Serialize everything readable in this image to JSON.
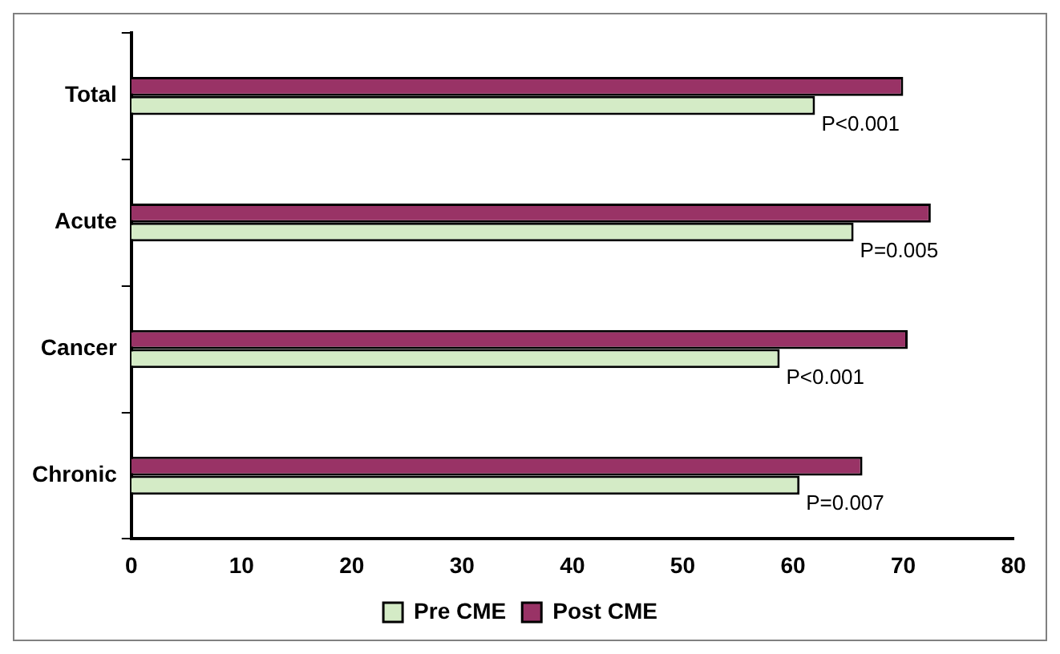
{
  "chart_data": {
    "type": "bar",
    "orientation": "horizontal",
    "categories": [
      "Total",
      "Acute",
      "Cancer",
      "Chronic"
    ],
    "series": [
      {
        "name": "Pre CME",
        "color": "#d4ebc6",
        "values": [
          62,
          65.5,
          58.8,
          60.6
        ]
      },
      {
        "name": "Post CME",
        "color": "#993366",
        "values": [
          70,
          72.5,
          70.4,
          66.3
        ]
      }
    ],
    "xlim": [
      0,
      80
    ],
    "xticks": [
      0,
      10,
      20,
      30,
      40,
      50,
      60,
      70,
      80
    ],
    "grid": false,
    "legend": "bottom",
    "annotations": [
      "P<0.001",
      "P=0.005",
      "P<0.001",
      "P=0.007"
    ]
  }
}
